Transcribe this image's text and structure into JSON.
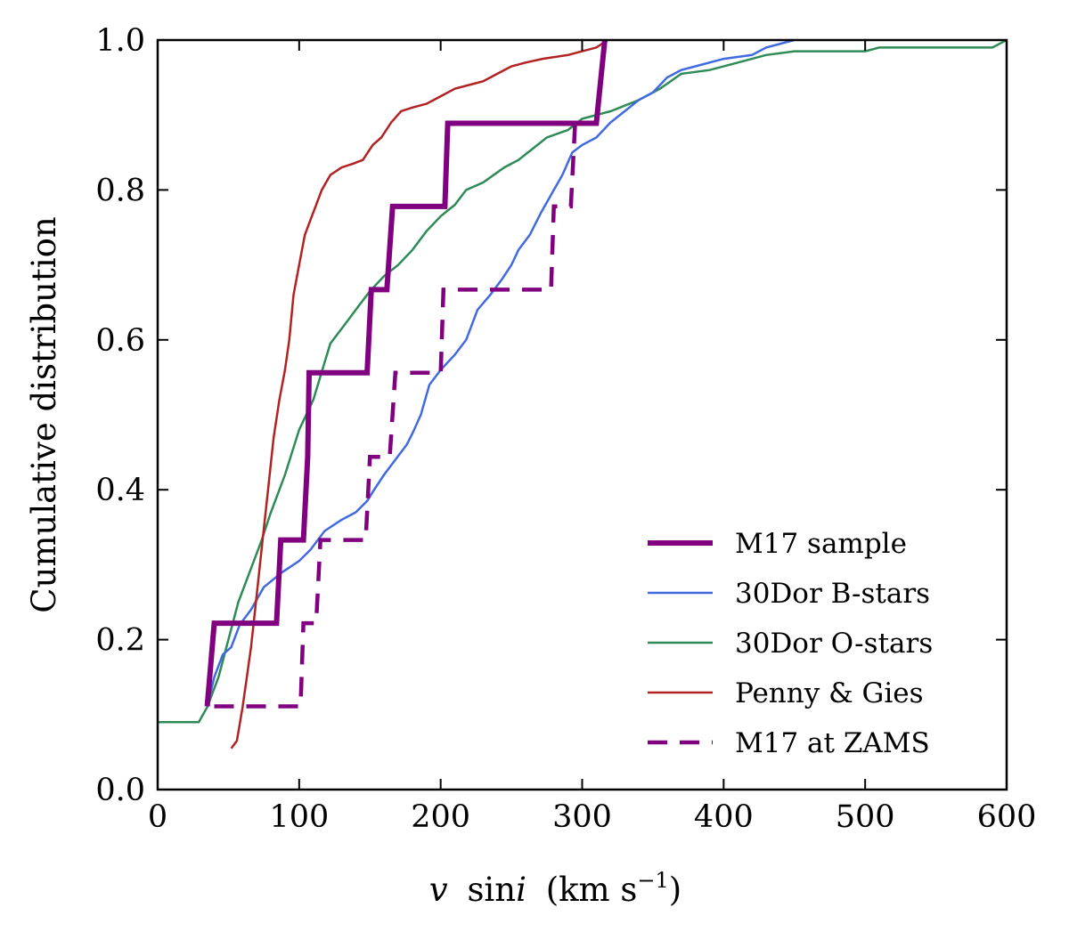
{
  "chart_data": {
    "type": "line",
    "title": "",
    "xlabel": {
      "var": "v",
      "fn": "sin",
      "sub": "i",
      "unit": "(km s",
      "exp": "−1",
      "close": ")"
    },
    "ylabel": "Cumulative distribution",
    "xlim": [
      0,
      600
    ],
    "ylim": [
      0,
      1.0
    ],
    "xticks": [
      0,
      100,
      200,
      300,
      400,
      500,
      600
    ],
    "xtick_labels": [
      "0",
      "100",
      "200",
      "300",
      "400",
      "500",
      "600"
    ],
    "yticks": [
      0.0,
      0.2,
      0.4,
      0.6,
      0.8,
      1.0
    ],
    "ytick_labels": [
      "0.0",
      "0.2",
      "0.4",
      "0.6",
      "0.8",
      "1.0"
    ],
    "grid": false,
    "legend_position": "lower-right",
    "series": [
      {
        "name": "M17 sample",
        "color": "#800080",
        "style": "solid",
        "weight": "thick",
        "step": true,
        "points": [
          [
            35,
            0.111
          ],
          [
            40,
            0.222
          ],
          [
            84,
            0.222
          ],
          [
            87,
            0.333
          ],
          [
            103,
            0.333
          ],
          [
            106,
            0.444
          ],
          [
            107,
            0.556
          ],
          [
            148,
            0.556
          ],
          [
            151,
            0.667
          ],
          [
            162,
            0.667
          ],
          [
            166,
            0.778
          ],
          [
            203,
            0.778
          ],
          [
            205,
            0.889
          ],
          [
            310,
            0.889
          ],
          [
            316,
            1.0
          ]
        ]
      },
      {
        "name": "30Dor B-stars",
        "color": "#4169e1",
        "style": "solid",
        "weight": "thin",
        "points": [
          [
            35,
            0.11
          ],
          [
            40,
            0.15
          ],
          [
            46,
            0.18
          ],
          [
            52,
            0.19
          ],
          [
            58,
            0.22
          ],
          [
            66,
            0.24
          ],
          [
            75,
            0.27
          ],
          [
            88,
            0.29
          ],
          [
            100,
            0.305
          ],
          [
            108,
            0.32
          ],
          [
            118,
            0.345
          ],
          [
            130,
            0.36
          ],
          [
            140,
            0.37
          ],
          [
            148,
            0.385
          ],
          [
            153,
            0.4
          ],
          [
            160,
            0.42
          ],
          [
            168,
            0.44
          ],
          [
            176,
            0.46
          ],
          [
            180,
            0.475
          ],
          [
            186,
            0.5
          ],
          [
            192,
            0.54
          ],
          [
            200,
            0.56
          ],
          [
            210,
            0.58
          ],
          [
            218,
            0.6
          ],
          [
            226,
            0.64
          ],
          [
            235,
            0.66
          ],
          [
            243,
            0.68
          ],
          [
            250,
            0.7
          ],
          [
            255,
            0.72
          ],
          [
            263,
            0.74
          ],
          [
            271,
            0.77
          ],
          [
            280,
            0.8
          ],
          [
            286,
            0.82
          ],
          [
            293,
            0.85
          ],
          [
            300,
            0.86
          ],
          [
            310,
            0.87
          ],
          [
            320,
            0.89
          ],
          [
            330,
            0.905
          ],
          [
            340,
            0.92
          ],
          [
            350,
            0.93
          ],
          [
            360,
            0.95
          ],
          [
            370,
            0.96
          ],
          [
            380,
            0.965
          ],
          [
            400,
            0.975
          ],
          [
            420,
            0.98
          ],
          [
            430,
            0.99
          ],
          [
            450,
            1.0
          ]
        ]
      },
      {
        "name": "30Dor O-stars",
        "color": "#2e8b57",
        "style": "solid",
        "weight": "thin",
        "points": [
          [
            0,
            0.09
          ],
          [
            29,
            0.09
          ],
          [
            35,
            0.11
          ],
          [
            43,
            0.15
          ],
          [
            50,
            0.2
          ],
          [
            57,
            0.25
          ],
          [
            65,
            0.29
          ],
          [
            73,
            0.33
          ],
          [
            80,
            0.37
          ],
          [
            90,
            0.42
          ],
          [
            100,
            0.48
          ],
          [
            110,
            0.52
          ],
          [
            118,
            0.57
          ],
          [
            122,
            0.595
          ],
          [
            132,
            0.62
          ],
          [
            142,
            0.645
          ],
          [
            150,
            0.665
          ],
          [
            160,
            0.685
          ],
          [
            170,
            0.7
          ],
          [
            180,
            0.72
          ],
          [
            190,
            0.745
          ],
          [
            200,
            0.765
          ],
          [
            210,
            0.78
          ],
          [
            218,
            0.8
          ],
          [
            230,
            0.81
          ],
          [
            245,
            0.83
          ],
          [
            255,
            0.84
          ],
          [
            265,
            0.855
          ],
          [
            275,
            0.87
          ],
          [
            290,
            0.88
          ],
          [
            300,
            0.895
          ],
          [
            320,
            0.905
          ],
          [
            340,
            0.92
          ],
          [
            355,
            0.935
          ],
          [
            370,
            0.955
          ],
          [
            390,
            0.96
          ],
          [
            410,
            0.97
          ],
          [
            430,
            0.98
          ],
          [
            450,
            0.985
          ],
          [
            500,
            0.985
          ],
          [
            510,
            0.99
          ],
          [
            590,
            0.99
          ],
          [
            600,
            1.0
          ]
        ]
      },
      {
        "name": "Penny & Gies",
        "color": "#b22222",
        "style": "solid",
        "weight": "thin",
        "points": [
          [
            52,
            0.055
          ],
          [
            56,
            0.065
          ],
          [
            60,
            0.11
          ],
          [
            63,
            0.15
          ],
          [
            66,
            0.19
          ],
          [
            70,
            0.26
          ],
          [
            74,
            0.33
          ],
          [
            78,
            0.4
          ],
          [
            82,
            0.47
          ],
          [
            86,
            0.52
          ],
          [
            90,
            0.56
          ],
          [
            93,
            0.6
          ],
          [
            96,
            0.66
          ],
          [
            100,
            0.7
          ],
          [
            104,
            0.74
          ],
          [
            108,
            0.76
          ],
          [
            112,
            0.78
          ],
          [
            116,
            0.8
          ],
          [
            122,
            0.82
          ],
          [
            130,
            0.83
          ],
          [
            138,
            0.835
          ],
          [
            145,
            0.84
          ],
          [
            152,
            0.86
          ],
          [
            158,
            0.87
          ],
          [
            165,
            0.89
          ],
          [
            172,
            0.905
          ],
          [
            180,
            0.91
          ],
          [
            190,
            0.915
          ],
          [
            200,
            0.925
          ],
          [
            210,
            0.935
          ],
          [
            220,
            0.94
          ],
          [
            230,
            0.945
          ],
          [
            240,
            0.955
          ],
          [
            250,
            0.965
          ],
          [
            260,
            0.97
          ],
          [
            272,
            0.975
          ],
          [
            290,
            0.98
          ],
          [
            300,
            0.985
          ],
          [
            310,
            0.99
          ],
          [
            318,
            1.0
          ]
        ]
      },
      {
        "name": "M17 at ZAMS",
        "color": "#800080",
        "style": "dashed",
        "weight": "medium",
        "step": true,
        "points": [
          [
            40,
            0.111
          ],
          [
            101,
            0.111
          ],
          [
            103,
            0.222
          ],
          [
            112,
            0.222
          ],
          [
            115,
            0.333
          ],
          [
            147,
            0.333
          ],
          [
            150,
            0.444
          ],
          [
            164,
            0.444
          ],
          [
            168,
            0.556
          ],
          [
            200,
            0.556
          ],
          [
            202,
            0.667
          ],
          [
            278,
            0.667
          ],
          [
            280,
            0.778
          ],
          [
            292,
            0.778
          ],
          [
            295,
            0.889
          ],
          [
            300,
            0.889
          ]
        ]
      }
    ]
  }
}
